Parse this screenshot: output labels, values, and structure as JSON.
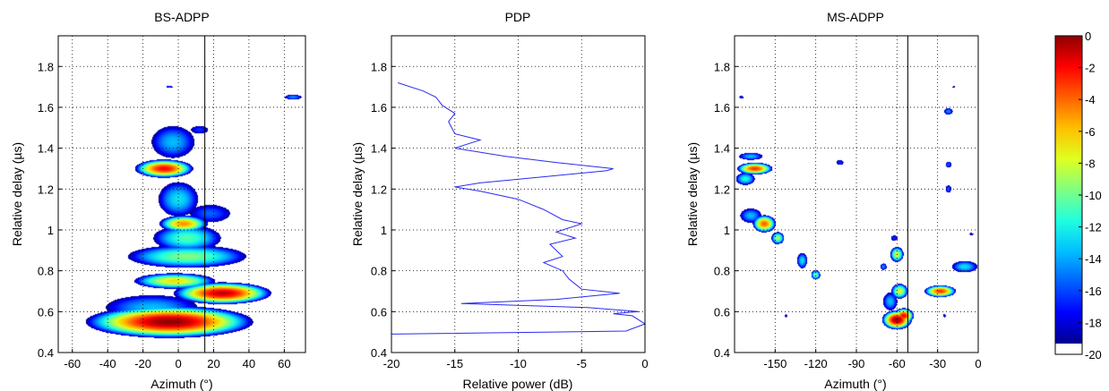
{
  "colors": {
    "pdp_line": "#2a2af0",
    "colormap": [
      "#00008f",
      "#0000ff",
      "#0060ff",
      "#00bfff",
      "#20ffdf",
      "#80ff80",
      "#dfff20",
      "#ffbf00",
      "#ff6000",
      "#ff0000",
      "#8f0000"
    ]
  },
  "colorbar": {
    "tick_values": [
      0,
      -2,
      -4,
      -6,
      -8,
      -10,
      -12,
      -14,
      -16,
      -18,
      -20
    ],
    "tick_labels": [
      "0",
      "-2",
      "-4",
      "-6",
      "-8",
      "-10",
      "-12",
      "-14",
      "-16",
      "-18",
      "-20"
    ],
    "range": [
      -20,
      0
    ]
  },
  "chart_data": [
    {
      "type": "heatmap",
      "title": "BS-ADPP",
      "xlabel": "Azimuth (°)",
      "ylabel": "Relative delay (µs)",
      "xlim": [
        -68,
        72
      ],
      "ylim": [
        0.4,
        1.95
      ],
      "x_ticks": [
        -60,
        -40,
        -20,
        0,
        20,
        40,
        60
      ],
      "x_tick_labels": [
        "-60",
        "-40",
        "-20",
        "0",
        "20",
        "40",
        "60"
      ],
      "y_ticks": [
        0.4,
        0.6,
        0.8,
        1.0,
        1.2,
        1.4,
        1.6,
        1.8
      ],
      "y_tick_labels": [
        "0.4",
        "0.6",
        "0.8",
        "1",
        "1.2",
        "1.4",
        "1.6",
        "1.8"
      ],
      "grid": true,
      "marker_line_x": 15,
      "blobs": [
        {
          "x": -5,
          "y": 0.55,
          "sx": 30,
          "sy": 0.05,
          "peak": 0
        },
        {
          "x": 25,
          "y": 0.69,
          "sx": 18,
          "sy": 0.035,
          "peak": -1
        },
        {
          "x": -8,
          "y": 1.3,
          "sx": 11,
          "sy": 0.03,
          "peak": -2
        },
        {
          "x": 3,
          "y": 1.03,
          "sx": 10,
          "sy": 0.03,
          "peak": -5
        },
        {
          "x": -2,
          "y": 0.75,
          "sx": 18,
          "sy": 0.03,
          "peak": -7
        },
        {
          "x": 5,
          "y": 0.87,
          "sx": 30,
          "sy": 0.05,
          "peak": -10
        },
        {
          "x": 5,
          "y": 0.96,
          "sx": 18,
          "sy": 0.06,
          "peak": -11
        },
        {
          "x": 0,
          "y": 1.15,
          "sx": 12,
          "sy": 0.09,
          "peak": -13
        },
        {
          "x": -15,
          "y": 0.62,
          "sx": 30,
          "sy": 0.07,
          "peak": -14
        },
        {
          "x": -3,
          "y": 1.43,
          "sx": 14,
          "sy": 0.09,
          "peak": -14
        },
        {
          "x": 18,
          "y": 1.08,
          "sx": 16,
          "sy": 0.06,
          "peak": -16
        },
        {
          "x": 12,
          "y": 1.49,
          "sx": 8,
          "sy": 0.03,
          "peak": -17
        },
        {
          "x": -5,
          "y": 1.7,
          "sx": 3,
          "sy": 0.01,
          "peak": -17
        },
        {
          "x": 65,
          "y": 1.65,
          "sx": 6,
          "sy": 0.015,
          "peak": -15
        }
      ]
    },
    {
      "type": "line",
      "title": "PDP",
      "xlabel": "Relative power (dB)",
      "ylabel": "Relative delay (µs)",
      "xlim": [
        -20,
        0
      ],
      "ylim": [
        0.4,
        1.95
      ],
      "x_ticks": [
        -20,
        -15,
        -10,
        -5,
        0
      ],
      "x_tick_labels": [
        "-20",
        "-15",
        "-10",
        "-5",
        "0"
      ],
      "y_ticks": [
        0.4,
        0.6,
        0.8,
        1.0,
        1.2,
        1.4,
        1.6,
        1.8
      ],
      "y_tick_labels": [
        "0.4",
        "0.6",
        "0.8",
        "1",
        "1.2",
        "1.4",
        "1.6",
        "1.8"
      ],
      "grid": true,
      "points": [
        [
          -20,
          0.49
        ],
        [
          -1.5,
          0.505
        ],
        [
          0,
          0.54
        ],
        [
          -1,
          0.58
        ],
        [
          -2.5,
          0.59
        ],
        [
          -0.5,
          0.6
        ],
        [
          -4.5,
          0.62
        ],
        [
          -14.5,
          0.64
        ],
        [
          -7,
          0.66
        ],
        [
          -2,
          0.69
        ],
        [
          -5,
          0.71
        ],
        [
          -6,
          0.76
        ],
        [
          -6.5,
          0.8
        ],
        [
          -8,
          0.84
        ],
        [
          -6.5,
          0.87
        ],
        [
          -7.5,
          0.93
        ],
        [
          -5.5,
          0.96
        ],
        [
          -7,
          0.99
        ],
        [
          -5,
          1.03
        ],
        [
          -6.5,
          1.05
        ],
        [
          -8,
          1.1
        ],
        [
          -10,
          1.15
        ],
        [
          -13,
          1.19
        ],
        [
          -15,
          1.21
        ],
        [
          -13,
          1.23
        ],
        [
          -8,
          1.26
        ],
        [
          -3,
          1.29
        ],
        [
          -2.5,
          1.3
        ],
        [
          -7,
          1.33
        ],
        [
          -11,
          1.36
        ],
        [
          -15,
          1.4
        ],
        [
          -13,
          1.44
        ],
        [
          -15,
          1.47
        ],
        [
          -15.5,
          1.53
        ],
        [
          -15,
          1.57
        ],
        [
          -16,
          1.61
        ],
        [
          -16.5,
          1.65
        ],
        [
          -17.5,
          1.68
        ],
        [
          -19.5,
          1.72
        ]
      ]
    },
    {
      "type": "heatmap",
      "title": "MS-ADPP",
      "xlabel": "Azimuth (°)",
      "ylabel": "Relative delay (µs)",
      "xlim": [
        -180,
        0
      ],
      "ylim": [
        0.4,
        1.95
      ],
      "x_ticks": [
        -150,
        -120,
        -90,
        -60,
        -30,
        0
      ],
      "x_tick_labels": [
        "-150",
        "-120",
        "-90",
        "-60",
        "-30",
        "0"
      ],
      "y_ticks": [
        0.4,
        0.6,
        0.8,
        1.0,
        1.2,
        1.4,
        1.6,
        1.8
      ],
      "y_tick_labels": [
        "0.4",
        "0.6",
        "0.8",
        "1",
        "1.2",
        "1.4",
        "1.6",
        "1.8"
      ],
      "grid": true,
      "marker_line_x": -52,
      "blobs": [
        {
          "x": -60,
          "y": 0.56,
          "sx": 7,
          "sy": 0.03,
          "peak": 0
        },
        {
          "x": -55,
          "y": 0.58,
          "sx": 5,
          "sy": 0.025,
          "peak": -2
        },
        {
          "x": -28,
          "y": 0.7,
          "sx": 8,
          "sy": 0.02,
          "peak": -3
        },
        {
          "x": -165,
          "y": 1.3,
          "sx": 9,
          "sy": 0.02,
          "peak": -3
        },
        {
          "x": -158,
          "y": 1.03,
          "sx": 6,
          "sy": 0.03,
          "peak": -4
        },
        {
          "x": -60,
          "y": 0.88,
          "sx": 4,
          "sy": 0.03,
          "peak": -8
        },
        {
          "x": -58,
          "y": 0.7,
          "sx": 5,
          "sy": 0.03,
          "peak": -8
        },
        {
          "x": -148,
          "y": 0.96,
          "sx": 4,
          "sy": 0.025,
          "peak": -9
        },
        {
          "x": -168,
          "y": 1.07,
          "sx": 9,
          "sy": 0.04,
          "peak": -14
        },
        {
          "x": -172,
          "y": 1.25,
          "sx": 7,
          "sy": 0.03,
          "peak": -12
        },
        {
          "x": -168,
          "y": 1.36,
          "sx": 10,
          "sy": 0.02,
          "peak": -14
        },
        {
          "x": -10,
          "y": 0.82,
          "sx": 10,
          "sy": 0.03,
          "peak": -13
        },
        {
          "x": -65,
          "y": 0.65,
          "sx": 6,
          "sy": 0.05,
          "peak": -14
        },
        {
          "x": -120,
          "y": 0.78,
          "sx": 3,
          "sy": 0.02,
          "peak": -10
        },
        {
          "x": -130,
          "y": 0.85,
          "sx": 4,
          "sy": 0.04,
          "peak": -13
        },
        {
          "x": -22,
          "y": 1.58,
          "sx": 4,
          "sy": 0.02,
          "peak": -15
        },
        {
          "x": -22,
          "y": 1.2,
          "sx": 3,
          "sy": 0.025,
          "peak": -16
        },
        {
          "x": -22,
          "y": 1.32,
          "sx": 3,
          "sy": 0.02,
          "peak": -16
        },
        {
          "x": -62,
          "y": 0.96,
          "sx": 4,
          "sy": 0.02,
          "peak": -17
        },
        {
          "x": -175,
          "y": 1.65,
          "sx": 3,
          "sy": 0.01,
          "peak": -17
        },
        {
          "x": -102,
          "y": 1.33,
          "sx": 4,
          "sy": 0.02,
          "peak": -17
        },
        {
          "x": -142,
          "y": 0.58,
          "sx": 2,
          "sy": 0.015,
          "peak": -18
        },
        {
          "x": -25,
          "y": 0.58,
          "sx": 2,
          "sy": 0.015,
          "peak": -18
        },
        {
          "x": -5,
          "y": 0.98,
          "sx": 3,
          "sy": 0.01,
          "peak": -18
        },
        {
          "x": -70,
          "y": 0.82,
          "sx": 3,
          "sy": 0.02,
          "peak": -15
        },
        {
          "x": -18,
          "y": 1.7,
          "sx": 2,
          "sy": 0.01,
          "peak": -18
        }
      ]
    }
  ]
}
